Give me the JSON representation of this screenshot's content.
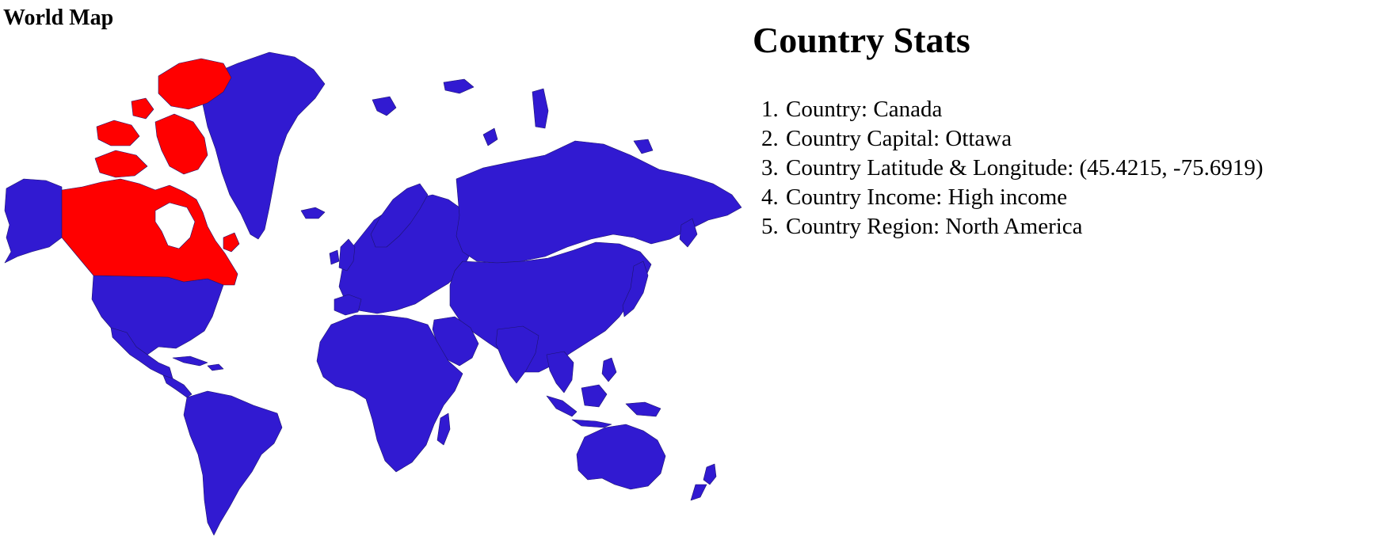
{
  "map": {
    "title": "World Map",
    "highlighted_country": "Canada",
    "colors": {
      "land": "#311ad1",
      "highlight": "#ff0000",
      "border": "#1d1470",
      "background": "#ffffff"
    }
  },
  "stats": {
    "title": "Country Stats",
    "items": [
      {
        "label": "Country",
        "value": "Canada",
        "text": "Country: Canada"
      },
      {
        "label": "Country Capital",
        "value": "Ottawa",
        "text": "Country Capital: Ottawa"
      },
      {
        "label": "Country Latitude & Longitude",
        "value": "(45.4215, -75.6919)",
        "text": "Country Latitude & Longitude: (45.4215, -75.6919)"
      },
      {
        "label": "Country Income",
        "value": "High income",
        "text": "Country Income: High income"
      },
      {
        "label": "Country Region",
        "value": "North America",
        "text": "Country Region: North America"
      }
    ]
  }
}
